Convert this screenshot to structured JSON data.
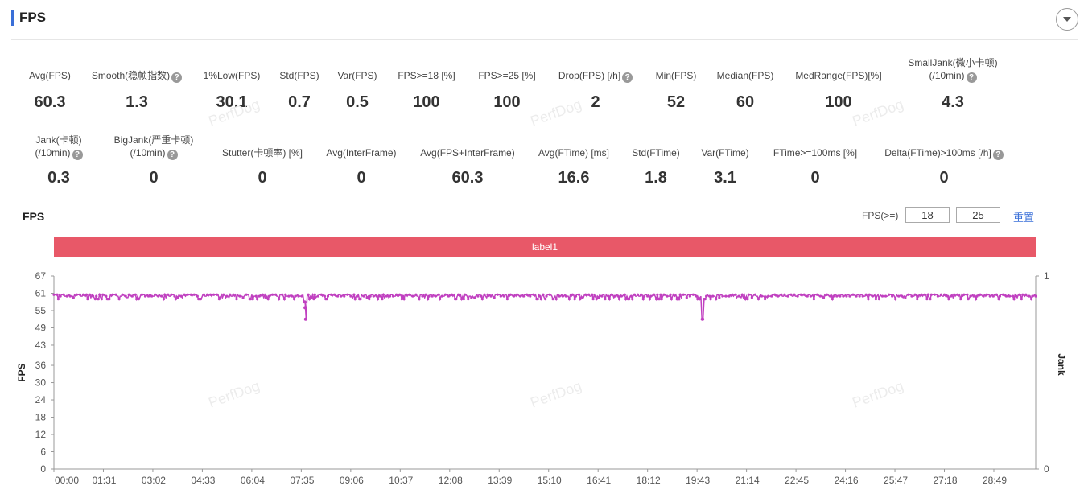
{
  "header": {
    "title": "FPS",
    "toggle_icon": "chevron-down-icon"
  },
  "metrics_row1": [
    {
      "label": "Avg(FPS)",
      "value": "60.3",
      "help": false
    },
    {
      "label": "Smooth(稳帧指数)",
      "value": "1.3",
      "help": true
    },
    {
      "label": "1%Low(FPS)",
      "value": "30.1",
      "help": false
    },
    {
      "label": "Std(FPS)",
      "value": "0.7",
      "help": false
    },
    {
      "label": "Var(FPS)",
      "value": "0.5",
      "help": false
    },
    {
      "label": "FPS>=18 [%]",
      "value": "100",
      "help": false
    },
    {
      "label": "FPS>=25 [%]",
      "value": "100",
      "help": false
    },
    {
      "label": "Drop(FPS) [/h]",
      "value": "2",
      "help": true
    },
    {
      "label": "Min(FPS)",
      "value": "52",
      "help": false
    },
    {
      "label": "Median(FPS)",
      "value": "60",
      "help": false
    },
    {
      "label": "MedRange(FPS)[%]",
      "value": "100",
      "help": false
    },
    {
      "label": "SmallJank(微小卡顿)",
      "label2": "(/10min)",
      "value": "4.3",
      "help": true
    }
  ],
  "metrics_row2": [
    {
      "label": "Jank(卡顿)",
      "label2": "(/10min)",
      "value": "0.3",
      "help": true
    },
    {
      "label": "BigJank(严重卡顿)",
      "label2": "(/10min)",
      "value": "0",
      "help": true
    },
    {
      "label": "Stutter(卡顿率) [%]",
      "value": "0",
      "help": false
    },
    {
      "label": "Avg(InterFrame)",
      "value": "0",
      "help": false
    },
    {
      "label": "Avg(FPS+InterFrame)",
      "value": "60.3",
      "help": false
    },
    {
      "label": "Avg(FTime) [ms]",
      "value": "16.6",
      "help": false
    },
    {
      "label": "Std(FTime)",
      "value": "1.8",
      "help": false
    },
    {
      "label": "Var(FTime)",
      "value": "3.1",
      "help": false
    },
    {
      "label": "FTime>=100ms [%]",
      "value": "0",
      "help": false
    },
    {
      "label": "Delta(FTime)>100ms [/h]",
      "value": "0",
      "help": true
    }
  ],
  "chart_section": {
    "title": "FPS",
    "threshold_label": "FPS(>=)",
    "threshold1": "18",
    "threshold2": "25",
    "reset_label": "重置",
    "label_bar": "label1",
    "watermark": "PerfDog"
  },
  "chart_data": {
    "type": "line",
    "ylabel": "FPS",
    "y2label": "Jank",
    "ylim": [
      0,
      67
    ],
    "yticks": [
      "0",
      "6",
      "12",
      "18",
      "24",
      "30",
      "36",
      "43",
      "49",
      "55",
      "61",
      "67"
    ],
    "y2lim": [
      0,
      1
    ],
    "y2ticks": [
      "0",
      "1"
    ],
    "xticks": [
      "00:00",
      "01:31",
      "03:02",
      "04:33",
      "06:04",
      "07:35",
      "09:06",
      "10:37",
      "12:08",
      "13:39",
      "15:10",
      "16:41",
      "18:12",
      "19:43",
      "21:14",
      "22:45",
      "24:16",
      "25:47",
      "27:18",
      "28:49"
    ],
    "duration_s": 1806,
    "baseline_fps": 60,
    "dips": [
      {
        "t": "07:41",
        "fps": 58
      },
      {
        "t": "07:42",
        "fps": 56
      },
      {
        "t": "07:43",
        "fps": 52
      },
      {
        "t": "19:53",
        "fps": 52
      }
    ],
    "color": "#c040c0"
  }
}
